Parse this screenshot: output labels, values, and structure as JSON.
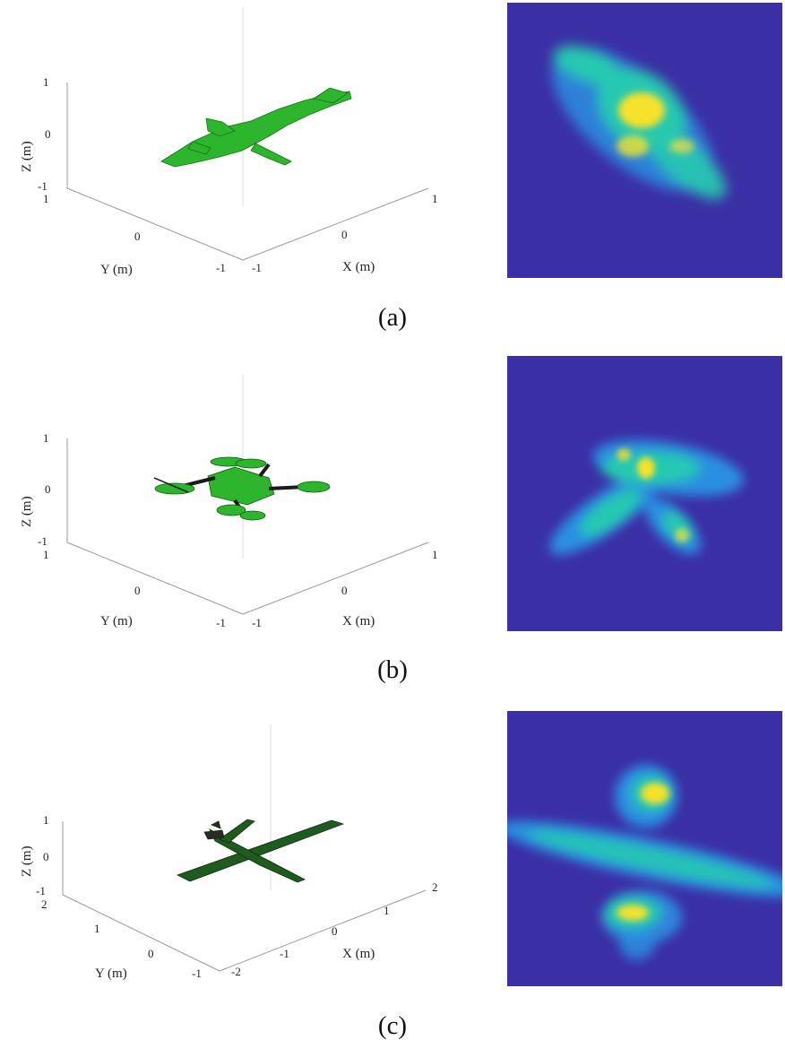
{
  "figure": {
    "panels": [
      {
        "caption": "(a)",
        "subject": "bird",
        "model_color": "#2db52d",
        "z_label": "Z (m)",
        "y_label": "Y (m)",
        "x_label": "X (m)",
        "z_ticks": [
          "1",
          "0",
          "-1"
        ],
        "y_ticks": [
          "1",
          "0",
          "-1"
        ],
        "x_ticks": [
          "-1",
          "0",
          "1"
        ]
      },
      {
        "caption": "(b)",
        "subject": "quadcopter-drone",
        "model_color": "#2db52d",
        "z_label": "Z (m)",
        "y_label": "Y (m)",
        "x_label": "X (m)",
        "z_ticks": [
          "1",
          "0",
          "-1"
        ],
        "y_ticks": [
          "1",
          "0",
          "-1"
        ],
        "x_ticks": [
          "-1",
          "0",
          "1"
        ]
      },
      {
        "caption": "(c)",
        "subject": "fixed-wing-aircraft",
        "model_color": "#1f5a1f",
        "z_label": "Z (m)",
        "y_label": "Y (m)",
        "x_label": "X (m)",
        "z_ticks": [
          "1",
          "0",
          "-1"
        ],
        "y_ticks": [
          "2",
          "1",
          "0",
          "-1"
        ],
        "x_ticks": [
          "-2",
          "-1",
          "0",
          "1",
          "2"
        ]
      }
    ],
    "heatmap_colors": {
      "background": "#3b2fa5",
      "low": "#2b8fe0",
      "mid": "#27c9b0",
      "high": "#f5e22a"
    }
  }
}
